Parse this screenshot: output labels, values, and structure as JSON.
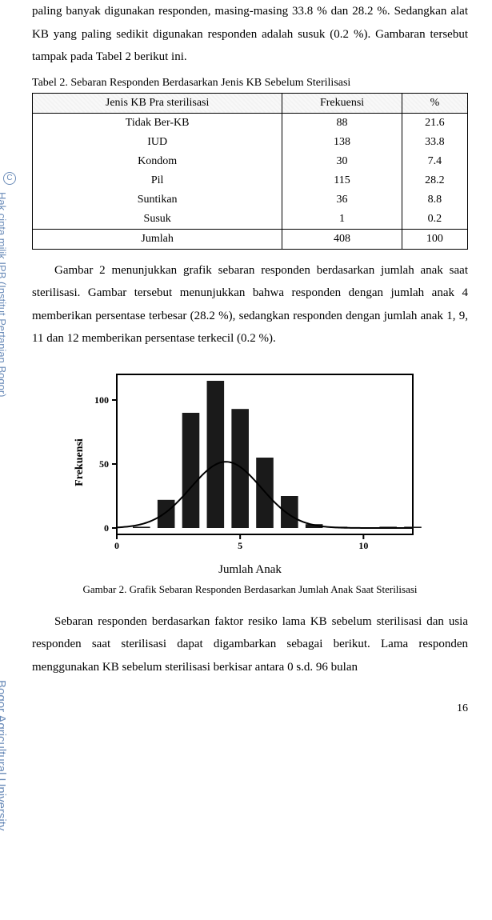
{
  "intro": {
    "p1": "paling banyak digunakan responden, masing-masing 33.8 % dan 28.2 %. Sedangkan alat KB yang paling sedikit digunakan responden adalah susuk (0.2 %). Gambaran tersebut tampak pada Tabel 2 berikut ini."
  },
  "table": {
    "caption": "Tabel 2. Sebaran Responden Berdasarkan Jenis KB Sebelum Sterilisasi",
    "col1": "Jenis KB Pra sterilisasi",
    "col2": "Frekuensi",
    "col3": "%",
    "rows": [
      {
        "name": "Tidak Ber-KB",
        "freq": "88",
        "pct": "21.6"
      },
      {
        "name": "IUD",
        "freq": "138",
        "pct": "33.8"
      },
      {
        "name": "Kondom",
        "freq": "30",
        "pct": "7.4"
      },
      {
        "name": "Pil",
        "freq": "115",
        "pct": "28.2"
      },
      {
        "name": "Suntikan",
        "freq": "36",
        "pct": "8.8"
      },
      {
        "name": "Susuk",
        "freq": "1",
        "pct": "0.2"
      }
    ],
    "total_label": "Jumlah",
    "total_freq": "408",
    "total_pct": "100"
  },
  "body": {
    "p2": "Gambar 2 menunjukkan grafik sebaran responden berdasarkan jumlah anak saat sterilisasi. Gambar tersebut menunjukkan bahwa responden dengan jumlah anak 4 memberikan persentase terbesar (28.2 %), sedangkan responden dengan jumlah anak 1, 9, 11 dan 12 memberikan persentase terkecil (0.2 %).",
    "p3": "Sebaran responden berdasarkan faktor resiko lama KB sebelum sterilisasi dan usia responden saat sterilisasi dapat digambarkan sebagai berikut. Lama responden menggunakan  KB sebelum sterilisasi berkisar antara 0 s.d. 96 bulan"
  },
  "chart": {
    "type": "histogram-with-normal-curve",
    "x_label": "Jumlah Anak",
    "y_label": "Frekuensi",
    "caption": "Gambar 2. Grafik Sebaran Responden Berdasarkan Jumlah Anak Saat Sterilisasi",
    "x_ticks": [
      0,
      5,
      10
    ],
    "y_ticks": [
      0,
      50,
      100
    ],
    "xlim": [
      0,
      12
    ],
    "ylim": [
      -5,
      120
    ],
    "bars": [
      {
        "x": 1,
        "value": 1
      },
      {
        "x": 2,
        "value": 22
      },
      {
        "x": 3,
        "value": 90
      },
      {
        "x": 4,
        "value": 115
      },
      {
        "x": 5,
        "value": 93
      },
      {
        "x": 6,
        "value": 55
      },
      {
        "x": 7,
        "value": 25
      },
      {
        "x": 8,
        "value": 3
      },
      {
        "x": 9,
        "value": 1
      },
      {
        "x": 10,
        "value": 0
      },
      {
        "x": 11,
        "value": 1
      },
      {
        "x": 12,
        "value": 1
      }
    ],
    "bar_color": "#1a1a1a",
    "bar_width": 0.7,
    "curve_color": "#000000",
    "curve_width": 2,
    "axis_color": "#000000",
    "axis_width": 2,
    "background_color": "#ffffff",
    "tick_fontsize": 12,
    "label_fontsize": 14
  },
  "watermark": {
    "c": "C",
    "line1": "Hak cipta milik IPB (Institut Pertanian Bogor)",
    "line2": "Bogor Agricultural University"
  },
  "page_number": "16"
}
